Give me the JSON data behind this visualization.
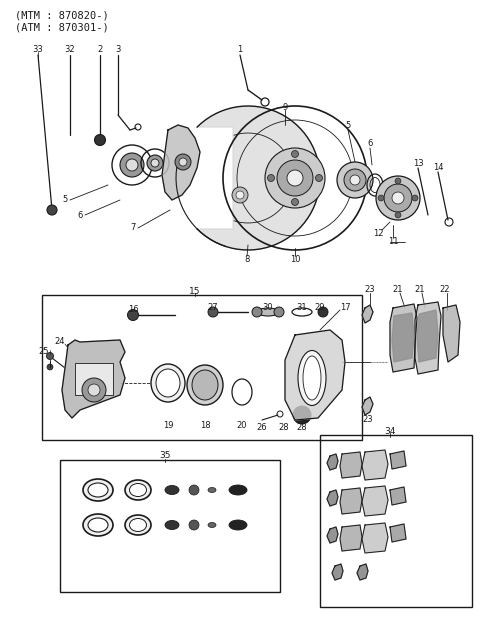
{
  "title_line1": "(MTM : 870820-)",
  "title_line2": "(ATM : 870301-)",
  "bg_color": "#ffffff",
  "line_color": "#1a1a1a",
  "text_color": "#1a1a1a",
  "fig_width": 4.8,
  "fig_height": 6.24,
  "dpi": 100
}
